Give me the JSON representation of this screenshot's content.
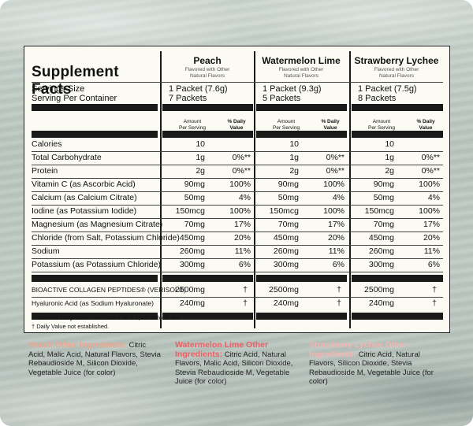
{
  "title": "Supplement Facts",
  "serving_labels": [
    "Servings Size",
    "Serving Per Container"
  ],
  "per_serving_header": [
    "Amount",
    "Per Serving"
  ],
  "dv_header": [
    "% Daily",
    "Value"
  ],
  "columns": [
    {
      "name": "Peach",
      "subtitle": "Flavored with Other Natural Flavors",
      "serving_size": "1 Packet (7.6g)",
      "servings": "7 Packets"
    },
    {
      "name": "Watermelon Lime",
      "subtitle": "Flavored with Other Natural Flavors",
      "serving_size": "1 Packet (9.3g)",
      "servings": "5 Packets"
    },
    {
      "name": "Strawberry Lychee",
      "subtitle": "Flavored with Other Natural Flavors",
      "serving_size": "1 Packet (7.5g)",
      "servings": "8 Packets"
    }
  ],
  "rows": [
    {
      "label": "Calories",
      "amount": "10",
      "dv": ""
    },
    {
      "label": "Total Carbohydrate",
      "amount": "1g",
      "dv": "0%**"
    },
    {
      "label": "Protein",
      "amount": "2g",
      "dv": "0%**"
    },
    {
      "label": "Vitamin C (as Ascorbic Acid)",
      "amount": "90mg",
      "dv": "100%"
    },
    {
      "label": "Calcium (as Calcium Citrate)",
      "amount": "50mg",
      "dv": "4%"
    },
    {
      "label": "Iodine (as Potassium Iodide)",
      "amount": "150mcg",
      "dv": "100%"
    },
    {
      "label": "Magnesium (as Magnesium Citrate)",
      "amount": "70mg",
      "dv": "17%"
    },
    {
      "label": "Chloride (from Salt, Potassium Chloride)",
      "amount": "450mg",
      "dv": "20%"
    },
    {
      "label": "Sodium",
      "amount": "260mg",
      "dv": "11%"
    },
    {
      "label": "Potassium (as Potassium Chloride)",
      "amount": "300mg",
      "dv": "6%"
    }
  ],
  "rows2": [
    {
      "label": "BIOACTIVE COLLAGEN PEPTIDES® (VERISOL®)",
      "amount": "2500mg",
      "dv": "†"
    },
    {
      "label": "Hyaluronic Acid (as Sodium Hyaluronate)",
      "amount": "240mg",
      "dv": "†"
    }
  ],
  "footnotes": [
    "** Percent Daily Values are based on a 2,000 calorie diet.",
    "† Daily Value not established."
  ],
  "ingredients": [
    {
      "heading": "Peach Other Ingredients:",
      "text": "Citric Acid, Malic Acid, Natural Flavors, Stevia Rebaudioside M, Silicon Dioxide, Vegetable Juice (for color)"
    },
    {
      "heading": "Watermelon Lime Other Ingredients:",
      "text": "Citric Acid, Natural Flavors, Malic Acid, Silicon Dioxide, Stevia Rebaudioside M, Vegetable Juice (for color)"
    },
    {
      "heading": "Strawberry Lychee Other Ingredients:",
      "text": "Citric Acid, Natural Flavors, Silicon Dioxide, Stevia Rebaudioside M, Vegetable Juice (for color)"
    }
  ],
  "colors": {
    "peach": "#f2a58a",
    "watermelon": "#ec5f62",
    "strawberry": "#f4b4b0",
    "panel": "#fbfaf3"
  }
}
